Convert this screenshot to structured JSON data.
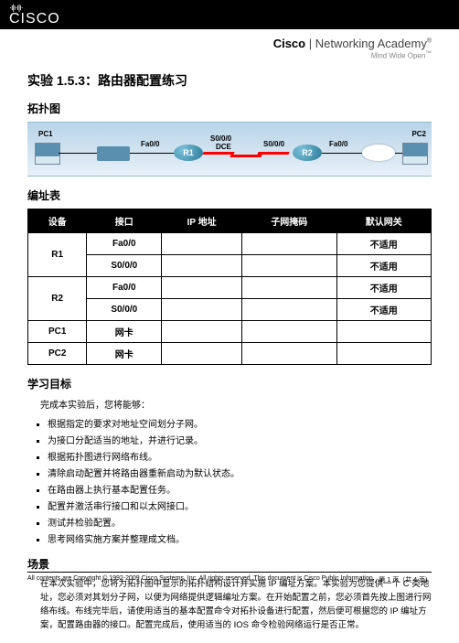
{
  "cisco_logo_text": "CISCO",
  "academy_brand_bold": "Cisco",
  "academy_brand_rest": " | Networking Academy",
  "academy_tagline": "Mind Wide Open",
  "title": "实验 1.5.3：路由器配置练习",
  "sec_topo": "拓扑图",
  "topo": {
    "pc1": "PC1",
    "pc2": "PC2",
    "r1": "R1",
    "r2": "R2",
    "fa00_l": "Fa0/0",
    "s000_l": "S0/0/0",
    "dce": "DCE",
    "s000_r": "S0/0/0",
    "fa00_r": "Fa0/0"
  },
  "sec_addr": "编址表",
  "tbl": {
    "h1": "设备",
    "h2": "接口",
    "h3": "IP 地址",
    "h4": "子网掩码",
    "h5": "默认网关",
    "r1": "R1",
    "r2": "R2",
    "pc1": "PC1",
    "pc2": "PC2",
    "fa": "Fa0/0",
    "s0": "S0/0/0",
    "nic": "网卡",
    "na": "不适用"
  },
  "sec_obj": "学习目标",
  "obj_intro": "完成本实验后，您将能够：",
  "objectives": [
    "根据指定的要求对地址空间划分子网。",
    "为接口分配适当的地址，并进行记录。",
    "根据拓扑图进行网络布线。",
    "清除启动配置并将路由器重新启动为默认状态。",
    "在路由器上执行基本配置任务。",
    "配置并激活串行接口和以太网接口。",
    "测试并检验配置。",
    "思考网络实施方案并整理成文档。"
  ],
  "sec_scene": "场景",
  "scenario_text": "在本次实验中，您将为拓扑图中显示的拓扑结构设计并实施 IP 编址方案。本实验为您提供一个 C 类地址，您必须对其划分子网，以便为网络提供逻辑编址方案。在开始配置之前，您必须首先按上图进行网络布线。布线完毕后，请使用适当的基本配置命令对拓扑设备进行配置，然后便可根据您的 IP 编址方案，配置路由器的接口。配置完成后，使用适当的 IOS 命令检验网络运行是否正常。",
  "footer_left": "All contents are Copyright © 1992-2009 Cisco Systems, Inc. All rights reserved. This document is Cisco Public Information.",
  "footer_right": "第 1 页（共 4 页）"
}
